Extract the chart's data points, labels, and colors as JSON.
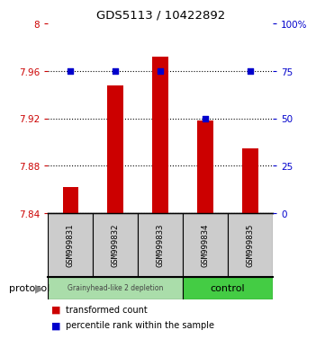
{
  "title": "GDS5113 / 10422892",
  "samples": [
    "GSM999831",
    "GSM999832",
    "GSM999833",
    "GSM999834",
    "GSM999835"
  ],
  "bar_values": [
    7.862,
    7.948,
    7.972,
    7.918,
    7.895
  ],
  "percentile_values": [
    75,
    75,
    75,
    50,
    75
  ],
  "bar_color": "#cc0000",
  "percentile_color": "#0000cc",
  "ylim_left": [
    7.84,
    8.0
  ],
  "ylim_right": [
    0,
    100
  ],
  "yticks_left": [
    7.84,
    7.88,
    7.92,
    7.96,
    8.0
  ],
  "ytick_labels_left": [
    "7.84",
    "7.88",
    "7.92",
    "7.96",
    "8"
  ],
  "yticks_right": [
    0,
    25,
    50,
    75,
    100
  ],
  "ytick_labels_right": [
    "0",
    "25",
    "50",
    "75",
    "100%"
  ],
  "group0_label": "Grainyhead-like 2 depletion",
  "group0_color": "#aaddaa",
  "group1_label": "control",
  "group1_color": "#44cc44",
  "protocol_label": "protocol",
  "legend_bar_label": "transformed count",
  "legend_pct_label": "percentile rank within the sample",
  "bar_bottom": 7.84,
  "background_color": "#ffffff",
  "sample_bg_color": "#cccccc",
  "bar_width": 0.35
}
